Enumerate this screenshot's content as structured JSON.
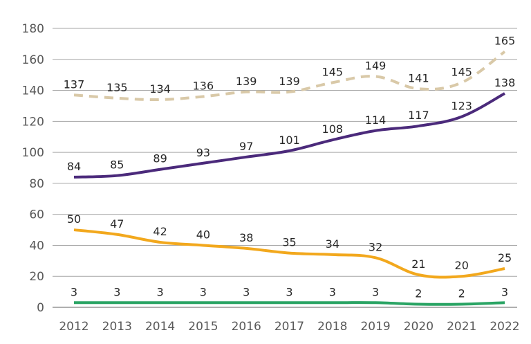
{
  "chart_data": {
    "type": "line",
    "title": "",
    "xlabel": "",
    "ylabel": "",
    "ylim": [
      0,
      180
    ],
    "yticks": [
      0,
      20,
      40,
      60,
      80,
      100,
      120,
      140,
      160,
      180
    ],
    "grid": true,
    "legend": "none",
    "x": [
      "2012",
      "2013",
      "2014",
      "2015",
      "2016",
      "2017",
      "2018",
      "2019",
      "2020",
      "2021",
      "2022"
    ],
    "series": [
      {
        "color": "#d9c9a8",
        "dashed": true,
        "values": [
          137,
          135,
          134,
          136,
          139,
          139,
          145,
          149,
          141,
          145,
          165
        ]
      },
      {
        "color": "#4b2a7b",
        "dashed": false,
        "values": [
          84,
          85,
          89,
          93,
          97,
          101,
          108,
          114,
          117,
          123,
          138
        ]
      },
      {
        "color": "#f2a81d",
        "dashed": false,
        "values": [
          50,
          47,
          42,
          40,
          38,
          35,
          34,
          32,
          21,
          20,
          25
        ]
      },
      {
        "color": "#2aa464",
        "dashed": false,
        "values": [
          3,
          3,
          3,
          3,
          3,
          3,
          3,
          3,
          2,
          2,
          3
        ]
      }
    ]
  }
}
